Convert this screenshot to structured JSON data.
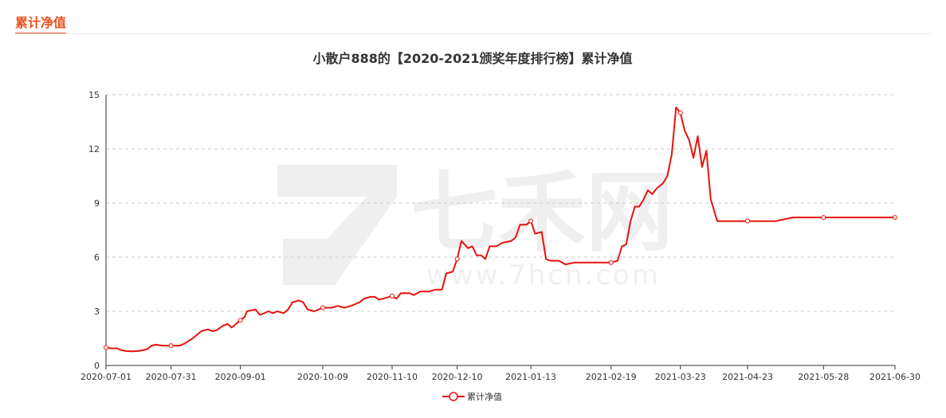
{
  "header": {
    "tab_label": "累计净值"
  },
  "watermark": {
    "brand": "七禾网",
    "url": "www.7hcn.com"
  },
  "chart_data": {
    "type": "line",
    "title": "小散户888的【2020-2021颁奖年度排行榜】累计净值",
    "xlabel": "",
    "ylabel": "",
    "ylim": [
      0,
      15
    ],
    "yticks": [
      0,
      3,
      6,
      9,
      12,
      15
    ],
    "xlim": [
      "2020-07-01",
      "2021-06-30"
    ],
    "xticks": [
      "2020-07-01",
      "2020-07-31",
      "2020-09-01",
      "2020-10-09",
      "2020-11-10",
      "2020-12-10",
      "2021-01-13",
      "2021-02-19",
      "2021-03-23",
      "2021-04-23",
      "2021-05-28",
      "2021-06-30"
    ],
    "grid": true,
    "legend_position": "bottom",
    "colors": {
      "line": "#e8120c",
      "grid": "#cccccc",
      "axis": "#333333"
    },
    "series": [
      {
        "name": "累计净值",
        "marker_dates": [
          "2020-07-01",
          "2020-07-31",
          "2020-09-01",
          "2020-10-09",
          "2020-11-10",
          "2020-12-10",
          "2021-01-13",
          "2021-02-19",
          "2021-03-23",
          "2021-04-23",
          "2021-05-28",
          "2021-06-30"
        ],
        "points": [
          [
            "2020-07-01",
            1.0
          ],
          [
            "2020-07-03",
            0.95
          ],
          [
            "2020-07-06",
            0.95
          ],
          [
            "2020-07-08",
            0.85
          ],
          [
            "2020-07-10",
            0.8
          ],
          [
            "2020-07-13",
            0.78
          ],
          [
            "2020-07-16",
            0.8
          ],
          [
            "2020-07-20",
            0.9
          ],
          [
            "2020-07-22",
            1.1
          ],
          [
            "2020-07-24",
            1.15
          ],
          [
            "2020-07-27",
            1.1
          ],
          [
            "2020-07-31",
            1.1
          ],
          [
            "2020-08-04",
            1.1
          ],
          [
            "2020-08-06",
            1.2
          ],
          [
            "2020-08-10",
            1.5
          ],
          [
            "2020-08-12",
            1.7
          ],
          [
            "2020-08-14",
            1.9
          ],
          [
            "2020-08-17",
            2.0
          ],
          [
            "2020-08-19",
            1.9
          ],
          [
            "2020-08-21",
            1.95
          ],
          [
            "2020-08-24",
            2.2
          ],
          [
            "2020-08-26",
            2.3
          ],
          [
            "2020-08-28",
            2.1
          ],
          [
            "2020-08-31",
            2.4
          ],
          [
            "2020-09-01",
            2.5
          ],
          [
            "2020-09-03",
            2.7
          ],
          [
            "2020-09-04",
            3.0
          ],
          [
            "2020-09-08",
            3.1
          ],
          [
            "2020-09-10",
            2.8
          ],
          [
            "2020-09-14",
            3.0
          ],
          [
            "2020-09-16",
            2.9
          ],
          [
            "2020-09-18",
            3.0
          ],
          [
            "2020-09-21",
            2.9
          ],
          [
            "2020-09-23",
            3.1
          ],
          [
            "2020-09-25",
            3.5
          ],
          [
            "2020-09-28",
            3.6
          ],
          [
            "2020-09-30",
            3.5
          ],
          [
            "2020-10-02",
            3.1
          ],
          [
            "2020-10-05",
            3.0
          ],
          [
            "2020-10-09",
            3.2
          ],
          [
            "2020-10-13",
            3.2
          ],
          [
            "2020-10-16",
            3.3
          ],
          [
            "2020-10-19",
            3.2
          ],
          [
            "2020-10-22",
            3.3
          ],
          [
            "2020-10-26",
            3.5
          ],
          [
            "2020-10-28",
            3.7
          ],
          [
            "2020-10-31",
            3.8
          ],
          [
            "2020-11-02",
            3.8
          ],
          [
            "2020-11-04",
            3.65
          ],
          [
            "2020-11-06",
            3.7
          ],
          [
            "2020-11-10",
            3.85
          ],
          [
            "2020-11-12",
            3.7
          ],
          [
            "2020-11-14",
            4.0
          ],
          [
            "2020-11-18",
            4.0
          ],
          [
            "2020-11-20",
            3.9
          ],
          [
            "2020-11-23",
            4.1
          ],
          [
            "2020-11-27",
            4.1
          ],
          [
            "2020-11-30",
            4.2
          ],
          [
            "2020-12-03",
            4.2
          ],
          [
            "2020-12-05",
            5.1
          ],
          [
            "2020-12-08",
            5.2
          ],
          [
            "2020-12-10",
            5.9
          ],
          [
            "2020-12-12",
            6.9
          ],
          [
            "2020-12-15",
            6.5
          ],
          [
            "2020-12-17",
            6.6
          ],
          [
            "2020-12-19",
            6.1
          ],
          [
            "2020-12-21",
            6.1
          ],
          [
            "2020-12-23",
            5.9
          ],
          [
            "2020-12-25",
            6.6
          ],
          [
            "2020-12-28",
            6.6
          ],
          [
            "2020-12-31",
            6.8
          ],
          [
            "2021-01-04",
            6.9
          ],
          [
            "2021-01-06",
            7.1
          ],
          [
            "2021-01-08",
            7.8
          ],
          [
            "2021-01-11",
            7.8
          ],
          [
            "2021-01-13",
            8.0
          ],
          [
            "2021-01-15",
            7.3
          ],
          [
            "2021-01-18",
            7.4
          ],
          [
            "2021-01-20",
            5.9
          ],
          [
            "2021-01-22",
            5.8
          ],
          [
            "2021-01-26",
            5.8
          ],
          [
            "2021-01-29",
            5.6
          ],
          [
            "2021-02-02",
            5.7
          ],
          [
            "2021-02-08",
            5.7
          ],
          [
            "2021-02-12",
            5.7
          ],
          [
            "2021-02-19",
            5.7
          ],
          [
            "2021-02-22",
            5.8
          ],
          [
            "2021-02-24",
            6.6
          ],
          [
            "2021-02-26",
            6.7
          ],
          [
            "2021-02-28",
            8.0
          ],
          [
            "2021-03-02",
            8.8
          ],
          [
            "2021-03-04",
            8.8
          ],
          [
            "2021-03-06",
            9.2
          ],
          [
            "2021-03-08",
            9.7
          ],
          [
            "2021-03-10",
            9.5
          ],
          [
            "2021-03-12",
            9.8
          ],
          [
            "2021-03-15",
            10.1
          ],
          [
            "2021-03-17",
            10.5
          ],
          [
            "2021-03-19",
            11.7
          ],
          [
            "2021-03-21",
            14.3
          ],
          [
            "2021-03-23",
            14.0
          ],
          [
            "2021-03-25",
            13.0
          ],
          [
            "2021-03-27",
            12.5
          ],
          [
            "2021-03-29",
            11.5
          ],
          [
            "2021-03-31",
            12.7
          ],
          [
            "2021-04-02",
            11.0
          ],
          [
            "2021-04-04",
            11.9
          ],
          [
            "2021-04-06",
            9.2
          ],
          [
            "2021-04-09",
            8.0
          ],
          [
            "2021-04-14",
            8.0
          ],
          [
            "2021-04-23",
            8.0
          ],
          [
            "2021-05-06",
            8.0
          ],
          [
            "2021-05-10",
            8.1
          ],
          [
            "2021-05-14",
            8.2
          ],
          [
            "2021-05-19",
            8.2
          ],
          [
            "2021-05-28",
            8.2
          ],
          [
            "2021-06-15",
            8.2
          ],
          [
            "2021-06-30",
            8.2
          ]
        ]
      }
    ]
  }
}
